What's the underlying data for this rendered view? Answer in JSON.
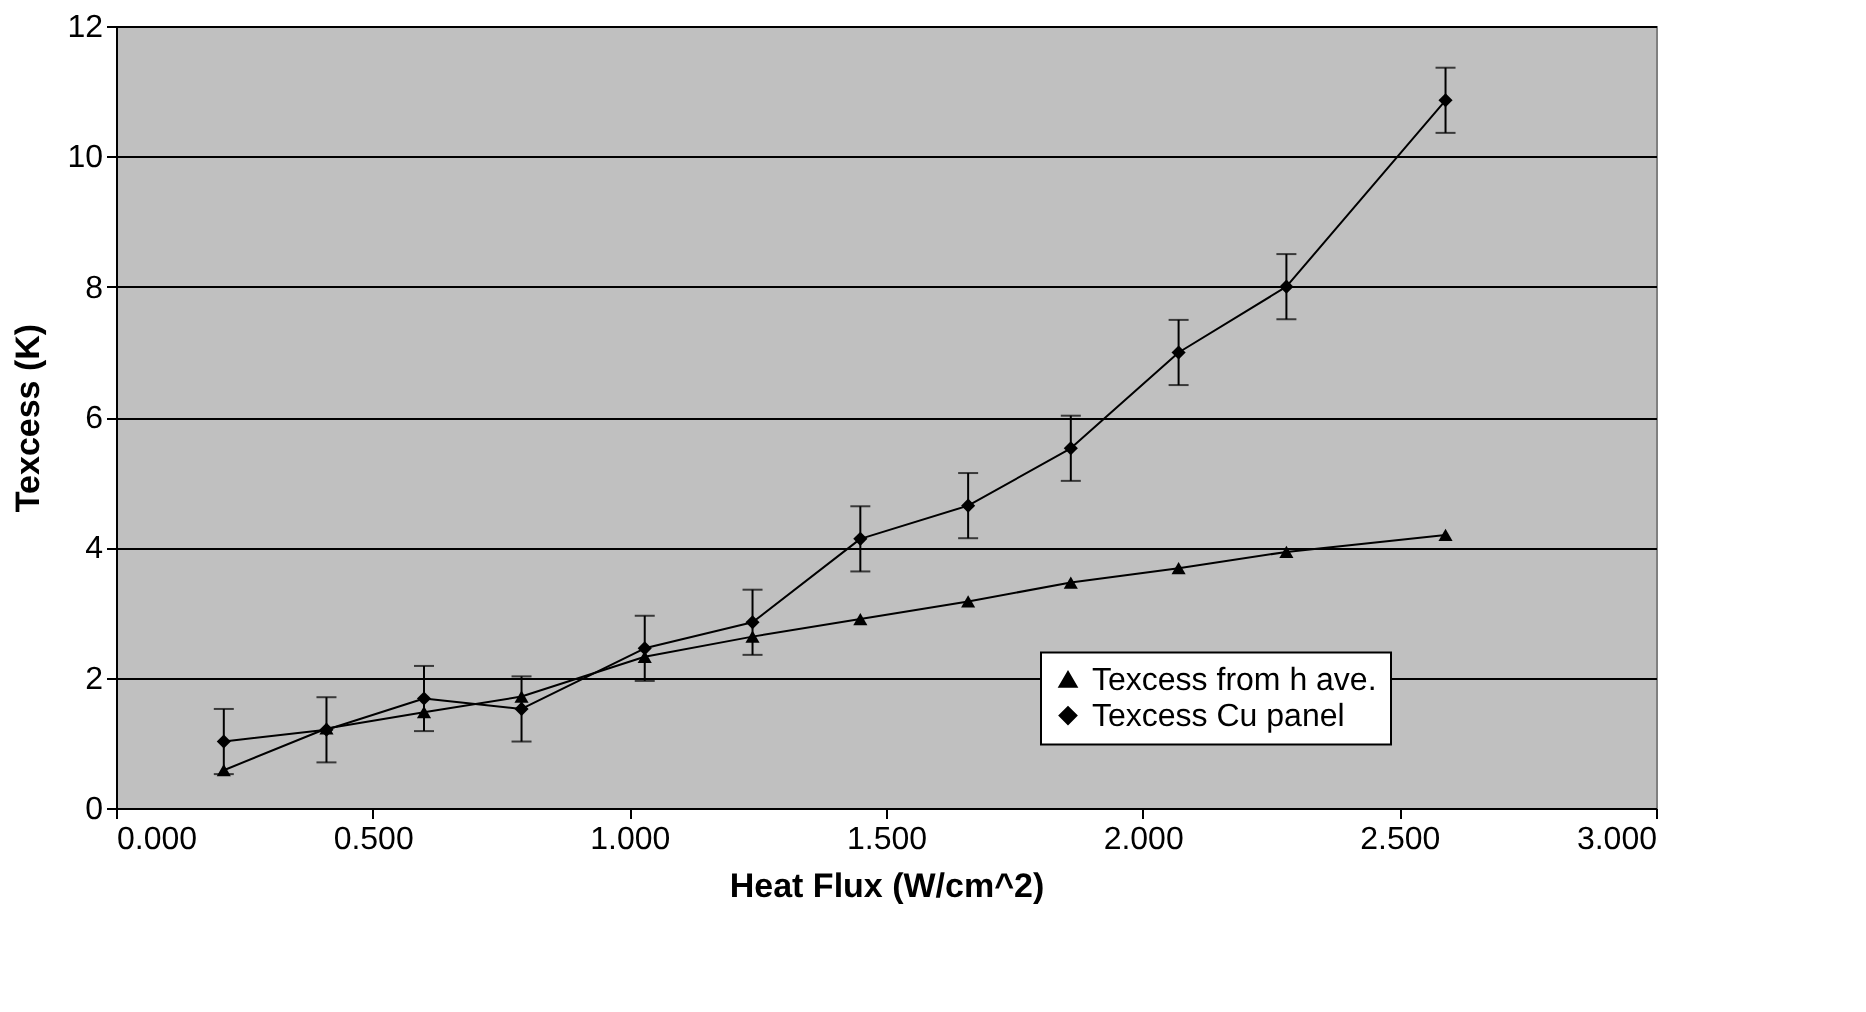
{
  "chart_data": {
    "type": "line",
    "xlabel": "Heat Flux (W/cm^2)",
    "ylabel": "Texcess (K)",
    "xlim": [
      0,
      3
    ],
    "ylim": [
      0,
      12
    ],
    "xticks": [
      {
        "value": 0,
        "label": "0.000"
      },
      {
        "value": 0.5,
        "label": "0.500"
      },
      {
        "value": 1,
        "label": "1.000"
      },
      {
        "value": 1.5,
        "label": "1.500"
      },
      {
        "value": 2,
        "label": "2.000"
      },
      {
        "value": 2.5,
        "label": "2.500"
      },
      {
        "value": 3,
        "label": "3.000"
      }
    ],
    "yticks": [
      0,
      2,
      4,
      6,
      8,
      10,
      12
    ],
    "x": [
      0.21,
      0.41,
      0.6,
      0.79,
      1.03,
      1.24,
      1.45,
      1.66,
      1.86,
      2.07,
      2.28,
      2.59
    ],
    "series": [
      {
        "name": "Texcess from h ave.",
        "color": "#000000",
        "marker": "triangle",
        "values": [
          0.58,
          1.22,
          1.47,
          1.71,
          2.32,
          2.63,
          2.9,
          3.17,
          3.46,
          3.68,
          3.93,
          4.19
        ]
      },
      {
        "name": "Texcess Cu panel",
        "color": "#000000",
        "marker": "diamond",
        "values": [
          1.02,
          1.2,
          1.68,
          1.52,
          2.45,
          2.85,
          4.13,
          4.64,
          5.52,
          6.99,
          8.0,
          10.86
        ],
        "errors": [
          0.5,
          0.5,
          0.5,
          0.5,
          0.5,
          0.5,
          0.5,
          0.5,
          0.5,
          0.5,
          0.5,
          0.5
        ]
      }
    ],
    "grid": "y",
    "legend": "bottom right"
  }
}
